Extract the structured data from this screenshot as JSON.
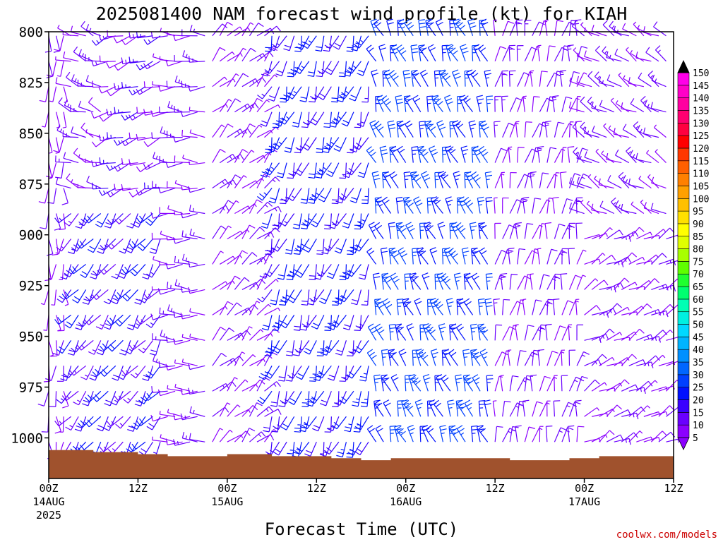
{
  "chart_data": {
    "type": "wind-barb-profile",
    "title": "2025081400 NAM forecast wind profile (kt) for KIAH",
    "xlabel": "Forecast Time (UTC)",
    "ylabel": "",
    "credit": "coolwx.com/models",
    "x_range_hours": [
      0,
      84
    ],
    "y_range_hPa": [
      800,
      1020
    ],
    "y_ticks": [
      {
        "value": 800,
        "label": "800"
      },
      {
        "value": 825,
        "label": "825"
      },
      {
        "value": 850,
        "label": "850"
      },
      {
        "value": 875,
        "label": "875"
      },
      {
        "value": 900,
        "label": "900"
      },
      {
        "value": 925,
        "label": "925"
      },
      {
        "value": 950,
        "label": "950"
      },
      {
        "value": 975,
        "label": "975"
      },
      {
        "value": 1000,
        "label": "1000"
      }
    ],
    "x_ticks": [
      {
        "hour": 0,
        "label": "00Z",
        "date": "14AUG",
        "year": "2025"
      },
      {
        "hour": 12,
        "label": "12Z",
        "date": "",
        "year": ""
      },
      {
        "hour": 24,
        "label": "00Z",
        "date": "15AUG",
        "year": ""
      },
      {
        "hour": 36,
        "label": "12Z",
        "date": "",
        "year": ""
      },
      {
        "hour": 48,
        "label": "00Z",
        "date": "16AUG",
        "year": ""
      },
      {
        "hour": 60,
        "label": "12Z",
        "date": "",
        "year": ""
      },
      {
        "hour": 72,
        "label": "00Z",
        "date": "17AUG",
        "year": ""
      },
      {
        "hour": 84,
        "label": "12Z",
        "date": "",
        "year": ""
      }
    ],
    "colorbar": {
      "units": "kt",
      "levels": [
        5,
        10,
        15,
        20,
        25,
        30,
        35,
        40,
        45,
        50,
        55,
        60,
        65,
        70,
        75,
        80,
        85,
        90,
        95,
        100,
        105,
        110,
        115,
        120,
        125,
        130,
        135,
        140,
        145,
        150
      ],
      "colors": [
        "#8b00ff",
        "#6a00ff",
        "#3a00ff",
        "#0010ff",
        "#0040ff",
        "#0066ff",
        "#0090ff",
        "#00b4ff",
        "#00d8ff",
        "#00f0e0",
        "#00ffb4",
        "#00ff70",
        "#20ff30",
        "#60ff00",
        "#a8ff00",
        "#e0ff00",
        "#ffff00",
        "#ffe000",
        "#ffc000",
        "#ffa000",
        "#ff8000",
        "#ff6000",
        "#ff3800",
        "#ff0000",
        "#ff0040",
        "#ff0070",
        "#ff00a0",
        "#ff00c8",
        "#ff00e8",
        "#ff40ff"
      ]
    },
    "surface_pressure_hPa": [
      {
        "hour": 0,
        "p": 1006
      },
      {
        "hour": 6,
        "p": 1007
      },
      {
        "hour": 10,
        "p": 1007
      },
      {
        "hour": 12,
        "p": 1008
      },
      {
        "hour": 16,
        "p": 1009
      },
      {
        "hour": 20,
        "p": 1009
      },
      {
        "hour": 24,
        "p": 1008
      },
      {
        "hour": 28,
        "p": 1008
      },
      {
        "hour": 30,
        "p": 1009
      },
      {
        "hour": 34,
        "p": 1009
      },
      {
        "hour": 38,
        "p": 1010
      },
      {
        "hour": 42,
        "p": 1011
      },
      {
        "hour": 46,
        "p": 1010
      },
      {
        "hour": 52,
        "p": 1010
      },
      {
        "hour": 58,
        "p": 1010
      },
      {
        "hour": 62,
        "p": 1011
      },
      {
        "hour": 66,
        "p": 1011
      },
      {
        "hour": 70,
        "p": 1010
      },
      {
        "hour": 74,
        "p": 1009
      },
      {
        "hour": 78,
        "p": 1009
      },
      {
        "hour": 84,
        "p": 1009
      }
    ],
    "wind_regimes": [
      {
        "h0": 0,
        "h1": 3,
        "p0": 800,
        "p1": 1008,
        "dir": 180,
        "spd": 8
      },
      {
        "h0": 3,
        "h1": 16,
        "p0": 880,
        "p1": 1008,
        "dir": 215,
        "spd": 18
      },
      {
        "h0": 3,
        "h1": 8,
        "p0": 800,
        "p1": 880,
        "dir": 290,
        "spd": 10
      },
      {
        "h0": 8,
        "h1": 16,
        "p0": 800,
        "p1": 880,
        "dir": 250,
        "spd": 12
      },
      {
        "h0": 16,
        "h1": 22,
        "p0": 800,
        "p1": 1008,
        "dir": 270,
        "spd": 10
      },
      {
        "h0": 22,
        "h1": 30,
        "p0": 800,
        "p1": 1008,
        "dir": 45,
        "spd": 9
      },
      {
        "h0": 30,
        "h1": 44,
        "p0": 800,
        "p1": 1010,
        "dir": 200,
        "spd": 20
      },
      {
        "h0": 44,
        "h1": 60,
        "p0": 800,
        "p1": 1010,
        "dir": 340,
        "spd": 25
      },
      {
        "h0": 60,
        "h1": 72,
        "p0": 800,
        "p1": 1010,
        "dir": 10,
        "spd": 10
      },
      {
        "h0": 72,
        "h1": 84,
        "p0": 800,
        "p1": 900,
        "dir": 300,
        "spd": 10
      },
      {
        "h0": 72,
        "h1": 84,
        "p0": 900,
        "p1": 1010,
        "dir": 60,
        "spd": 9
      }
    ]
  }
}
